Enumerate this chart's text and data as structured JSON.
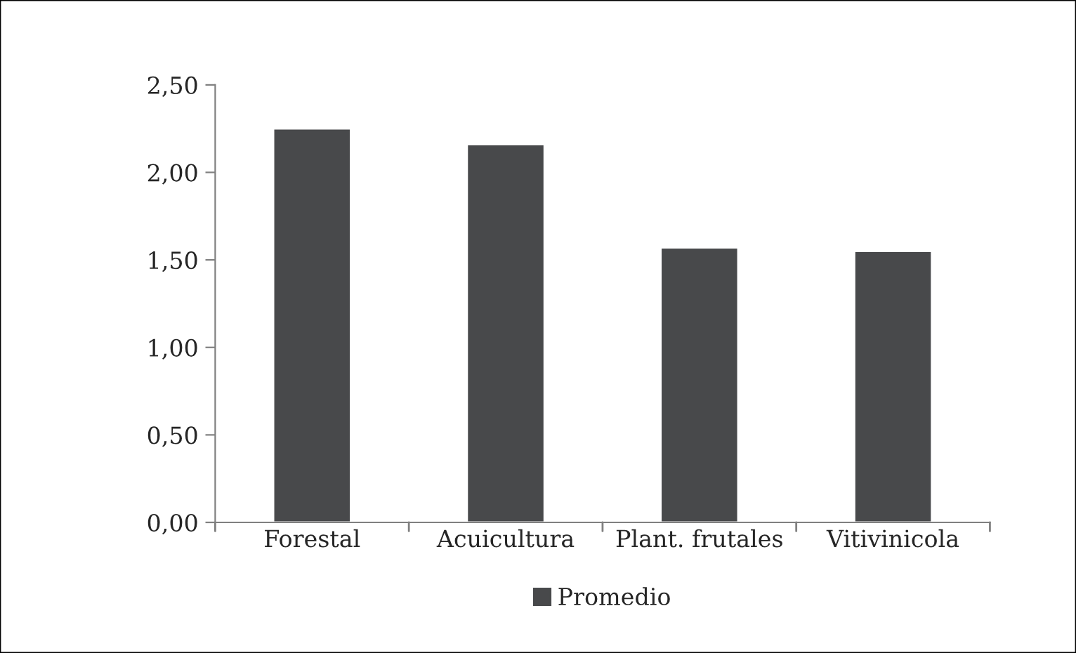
{
  "chart_data": {
    "type": "bar",
    "categories": [
      "Forestal",
      "Acuicultura",
      "Plant. frutales",
      "Vitivinicola"
    ],
    "series": [
      {
        "name": "Promedio",
        "color": "#48494b",
        "values": [
          2.25,
          2.16,
          1.57,
          1.55
        ]
      }
    ],
    "ylim": [
      0,
      2.5
    ],
    "yticks": [
      {
        "value": 0,
        "label": "0,00"
      },
      {
        "value": 0.5,
        "label": "0,50"
      },
      {
        "value": 1,
        "label": "1,00"
      },
      {
        "value": 1.5,
        "label": "1,50"
      },
      {
        "value": 2,
        "label": "2,00"
      },
      {
        "value": 2.5,
        "label": "2,50"
      }
    ],
    "grid": false,
    "legend": "bottom"
  }
}
